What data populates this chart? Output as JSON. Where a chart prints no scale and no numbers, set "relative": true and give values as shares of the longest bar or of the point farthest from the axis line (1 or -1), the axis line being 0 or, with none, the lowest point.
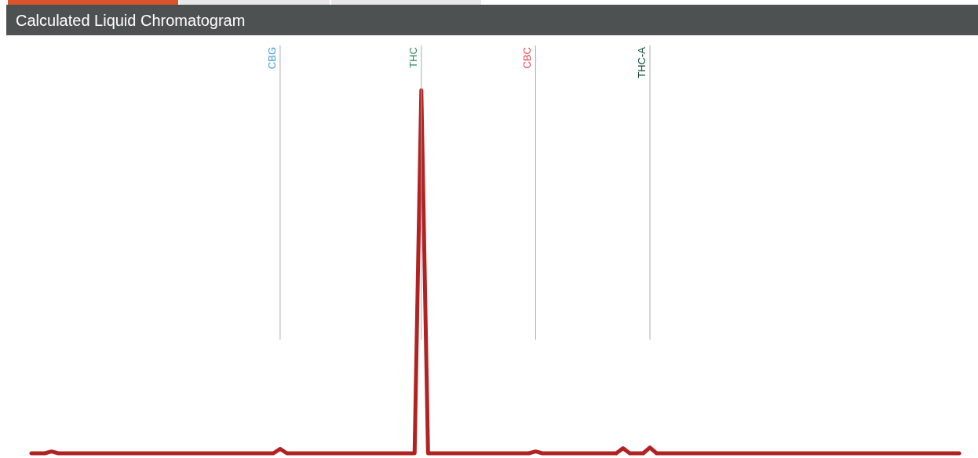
{
  "chart_data": {
    "type": "line",
    "title": "Calculated Liquid Chromatogram",
    "relative": true,
    "marker": "none",
    "line_style": "solid",
    "categories": [
      null,
      null,
      null,
      null,
      null,
      null,
      null,
      null,
      null,
      null,
      null,
      null,
      null,
      null,
      null,
      null,
      null,
      null,
      null,
      null,
      null,
      null,
      null,
      null,
      null,
      null,
      null,
      null,
      null,
      null,
      null,
      null,
      null,
      null,
      null,
      null,
      null,
      null,
      null,
      null,
      null,
      null,
      null,
      null,
      null,
      null,
      null,
      null,
      null,
      null,
      null,
      null,
      null,
      null,
      null,
      null,
      null,
      null,
      null,
      null,
      null,
      null,
      null,
      null,
      null,
      null,
      null,
      null,
      null,
      null,
      null,
      null,
      null,
      null,
      null,
      null,
      null,
      null,
      null,
      null,
      null,
      null,
      null,
      null,
      null,
      null,
      null,
      null,
      null,
      null,
      null,
      null,
      null,
      null,
      null,
      null,
      null,
      null,
      null,
      null,
      null,
      null,
      null,
      null,
      null,
      null,
      null,
      null,
      null,
      null,
      null,
      null,
      null,
      null,
      null,
      null,
      null,
      null,
      null,
      null,
      null,
      null,
      null,
      null,
      null,
      null,
      null,
      null,
      null,
      null,
      null,
      null,
      null,
      null,
      null,
      null,
      null,
      null,
      null
    ],
    "series": [
      {
        "color": "#b22222",
        "values": [
          0,
          0,
          0,
          0.005,
          0,
          0,
          0,
          0,
          0,
          0,
          0,
          0,
          0,
          0,
          0,
          0,
          0,
          0,
          0,
          0,
          0,
          0,
          0,
          0,
          0,
          0,
          0,
          0,
          0,
          0,
          0,
          0,
          0,
          0,
          0,
          0,
          0,
          0.012,
          0,
          0,
          0,
          0,
          0,
          0,
          0,
          0,
          0,
          0,
          0,
          0,
          0,
          0,
          0,
          0,
          0,
          0,
          0,
          0,
          1,
          0,
          0,
          0,
          0,
          0,
          0,
          0,
          0,
          0,
          0,
          0,
          0,
          0,
          0,
          0,
          0,
          0.005,
          0,
          0,
          0,
          0,
          0,
          0,
          0,
          0,
          0,
          0,
          0,
          0,
          0.014,
          0,
          0,
          0,
          0.016,
          0,
          0,
          0,
          0,
          0,
          0,
          0,
          0,
          0,
          0,
          0,
          0,
          0,
          0,
          0,
          0,
          0,
          0,
          0,
          0,
          0,
          0,
          0,
          0,
          0,
          0,
          0,
          0,
          0,
          0,
          0,
          0,
          0,
          0,
          0,
          0,
          0,
          0,
          0,
          0,
          0,
          0,
          0,
          0,
          0,
          0
        ]
      }
    ],
    "annotations": [
      "CBG",
      "THC",
      "CBC",
      "THC-A"
    ]
  }
}
